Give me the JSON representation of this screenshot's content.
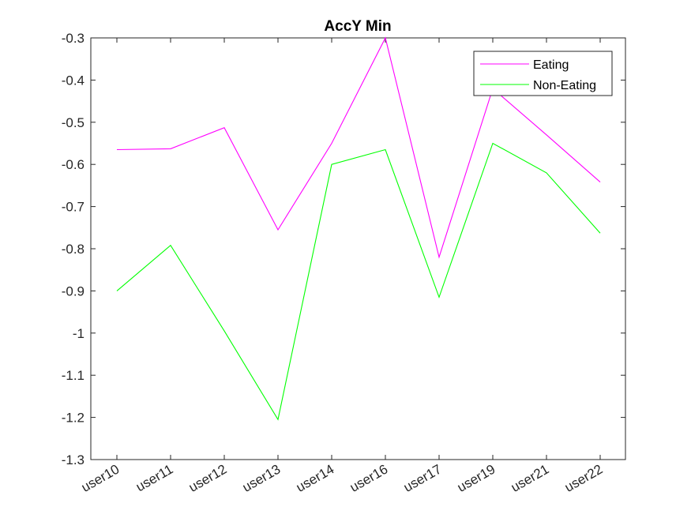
{
  "chart_data": {
    "type": "line",
    "title": "AccY Min",
    "xlabel": "",
    "ylabel": "",
    "categories": [
      "user10",
      "user11",
      "user12",
      "user13",
      "user14",
      "user16",
      "user17",
      "user19",
      "user21",
      "user22"
    ],
    "ylim": [
      -1.3,
      -0.3
    ],
    "yticks": [
      "-1.3",
      "-1.2",
      "-1.1",
      "-1",
      "-0.9",
      "-0.8",
      "-0.7",
      "-0.6",
      "-0.5",
      "-0.4",
      "-0.3"
    ],
    "grid": false,
    "legend_position": "top-right",
    "series": [
      {
        "name": "Eating",
        "color": "#ff00ff",
        "values": [
          -0.565,
          -0.563,
          -0.513,
          -0.755,
          -0.55,
          -0.3,
          -0.82,
          -0.42,
          -0.53,
          -0.642
        ]
      },
      {
        "name": "Non-Eating",
        "color": "#00ff00",
        "values": [
          -0.9,
          -0.792,
          -0.995,
          -1.205,
          -0.6,
          -0.565,
          -0.915,
          -0.55,
          -0.62,
          -0.763
        ]
      }
    ]
  }
}
